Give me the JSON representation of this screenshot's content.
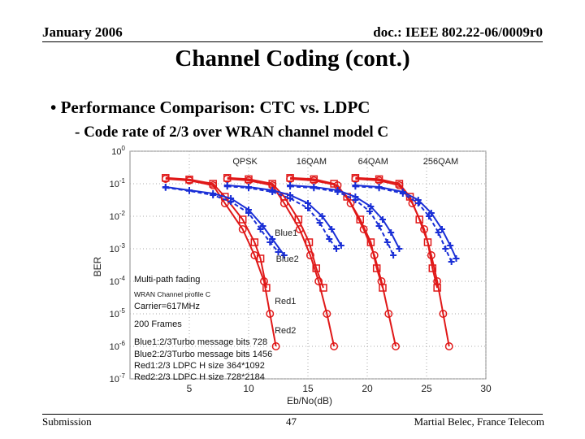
{
  "header": {
    "date": "January 2006",
    "doc": "doc.: IEEE 802.22-06/0009r0"
  },
  "title": "Channel Coding (cont.)",
  "bullets": [
    "• Performance Comparison: CTC vs. LDPC",
    "- Code rate of 2/3 over WRAN channel model C"
  ],
  "footer": {
    "left": "Submission",
    "center": "47",
    "right": "Martial Belec, France Telecom"
  },
  "colors": {
    "red": "#e01818",
    "blue": "#1a2fd6"
  },
  "chart_data": {
    "type": "line",
    "xlabel": "Eb/No(dB)",
    "ylabel": "BER",
    "xlim": [
      0,
      30
    ],
    "ylog_exponent_lim": [
      -7,
      0
    ],
    "xticks": [
      5,
      10,
      15,
      20,
      25,
      30
    ],
    "ytick_exponents": [
      0,
      -1,
      -2,
      -3,
      -4,
      -5,
      -6,
      -7
    ],
    "modulation_labels": [
      {
        "text": "QPSK",
        "x": 9.7
      },
      {
        "text": "16QAM",
        "x": 15.3
      },
      {
        "text": "64QAM",
        "x": 20.5
      },
      {
        "text": "256QAM",
        "x": 26.2
      }
    ],
    "curve_labels": [
      {
        "text": "Blue1",
        "x": 12.2,
        "logy": -2.5
      },
      {
        "text": "Blue2",
        "x": 12.3,
        "logy": -3.3
      },
      {
        "text": "Red1",
        "x": 12.2,
        "logy": -4.6
      },
      {
        "text": "Red2",
        "x": 12.2,
        "logy": -5.5
      }
    ],
    "annotations": [
      "Multi-path fading",
      "WRAN Channel profile C",
      "Carrier=617MHz",
      "200 Frames",
      "Blue1:2/3Turbo message bits 728",
      "Blue2:2/3Turbo message bits 1456",
      "Red1:2/3 LDPC H size 364*1092",
      "Red2:2/3 LDPC H size 728*2184"
    ],
    "series": [
      {
        "style": "red-square",
        "points": [
          [
            3,
            -0.82
          ],
          [
            5,
            -0.87
          ],
          [
            7,
            -1.0
          ],
          [
            8,
            -1.4
          ],
          [
            9.5,
            -2.1
          ],
          [
            10.5,
            -2.8
          ],
          [
            11,
            -3.3
          ],
          [
            11.5,
            -4.2
          ]
        ]
      },
      {
        "style": "red-circle",
        "points": [
          [
            3,
            -0.85
          ],
          [
            5,
            -0.9
          ],
          [
            7,
            -1.05
          ],
          [
            8,
            -1.6
          ],
          [
            9.5,
            -2.4
          ],
          [
            10.5,
            -3.2
          ],
          [
            11.3,
            -4.0
          ],
          [
            11.8,
            -5.0
          ],
          [
            12.3,
            -6.0
          ]
        ]
      },
      {
        "style": "red-square",
        "points": [
          [
            8.2,
            -0.82
          ],
          [
            10,
            -0.86
          ],
          [
            12,
            -1.0
          ],
          [
            13,
            -1.4
          ],
          [
            14.2,
            -2.1
          ],
          [
            15.1,
            -2.8
          ],
          [
            15.7,
            -3.6
          ],
          [
            16.3,
            -4.2
          ]
        ]
      },
      {
        "style": "red-circle",
        "points": [
          [
            8.2,
            -0.85
          ],
          [
            10,
            -0.9
          ],
          [
            12,
            -1.05
          ],
          [
            13,
            -1.6
          ],
          [
            14.3,
            -2.4
          ],
          [
            15.2,
            -3.2
          ],
          [
            15.9,
            -4.0
          ],
          [
            16.6,
            -5.0
          ],
          [
            17.2,
            -6.0
          ]
        ]
      },
      {
        "style": "red-square",
        "points": [
          [
            13.5,
            -0.82
          ],
          [
            15.5,
            -0.86
          ],
          [
            17.2,
            -1.0
          ],
          [
            18.3,
            -1.4
          ],
          [
            19.4,
            -2.1
          ],
          [
            20.3,
            -2.8
          ],
          [
            20.8,
            -3.6
          ],
          [
            21.3,
            -4.2
          ]
        ]
      },
      {
        "style": "red-circle",
        "points": [
          [
            13.5,
            -0.85
          ],
          [
            15.5,
            -0.9
          ],
          [
            17.5,
            -1.05
          ],
          [
            18.6,
            -1.6
          ],
          [
            19.7,
            -2.4
          ],
          [
            20.6,
            -3.2
          ],
          [
            21.2,
            -4.0
          ],
          [
            21.8,
            -5.0
          ],
          [
            22.4,
            -6.0
          ]
        ]
      },
      {
        "style": "red-square",
        "points": [
          [
            19,
            -0.82
          ],
          [
            21,
            -0.86
          ],
          [
            22.7,
            -1.0
          ],
          [
            23.6,
            -1.4
          ],
          [
            24.4,
            -2.1
          ],
          [
            25.1,
            -2.8
          ],
          [
            25.5,
            -3.6
          ],
          [
            25.9,
            -4.2
          ]
        ]
      },
      {
        "style": "red-circle",
        "points": [
          [
            19,
            -0.85
          ],
          [
            21,
            -0.9
          ],
          [
            22.7,
            -1.05
          ],
          [
            23.8,
            -1.6
          ],
          [
            24.8,
            -2.4
          ],
          [
            25.4,
            -3.2
          ],
          [
            25.9,
            -4.0
          ],
          [
            26.4,
            -5.0
          ],
          [
            26.9,
            -6.0
          ]
        ]
      },
      {
        "style": "blue-solid",
        "points": [
          [
            3,
            -1.1
          ],
          [
            5,
            -1.2
          ],
          [
            7,
            -1.3
          ],
          [
            8.5,
            -1.45
          ],
          [
            10,
            -1.8
          ],
          [
            11.2,
            -2.3
          ],
          [
            12,
            -2.7
          ],
          [
            13,
            -3.2
          ]
        ]
      },
      {
        "style": "blue-dash",
        "points": [
          [
            3,
            -1.12
          ],
          [
            5,
            -1.22
          ],
          [
            7,
            -1.35
          ],
          [
            8.5,
            -1.55
          ],
          [
            10,
            -1.9
          ],
          [
            11,
            -2.4
          ],
          [
            11.8,
            -2.8
          ],
          [
            12.5,
            -3.1
          ]
        ]
      },
      {
        "style": "blue-solid",
        "points": [
          [
            8.2,
            -1.05
          ],
          [
            10,
            -1.1
          ],
          [
            12,
            -1.2
          ],
          [
            13.5,
            -1.35
          ],
          [
            15,
            -1.6
          ],
          [
            16.2,
            -2.0
          ],
          [
            17,
            -2.4
          ],
          [
            17.8,
            -2.9
          ]
        ]
      },
      {
        "style": "blue-dash",
        "points": [
          [
            8.2,
            -1.08
          ],
          [
            10,
            -1.13
          ],
          [
            12,
            -1.25
          ],
          [
            13.5,
            -1.45
          ],
          [
            15,
            -1.75
          ],
          [
            16,
            -2.2
          ],
          [
            16.8,
            -2.7
          ],
          [
            17.4,
            -3.0
          ]
        ]
      },
      {
        "style": "blue-solid",
        "points": [
          [
            13.5,
            -1.05
          ],
          [
            15.5,
            -1.1
          ],
          [
            17.5,
            -1.2
          ],
          [
            19,
            -1.4
          ],
          [
            20.3,
            -1.7
          ],
          [
            21.3,
            -2.1
          ],
          [
            22,
            -2.5
          ],
          [
            22.7,
            -3.0
          ]
        ]
      },
      {
        "style": "blue-dash",
        "points": [
          [
            13.5,
            -1.08
          ],
          [
            15.5,
            -1.13
          ],
          [
            17.5,
            -1.25
          ],
          [
            19,
            -1.5
          ],
          [
            20.2,
            -1.85
          ],
          [
            21,
            -2.3
          ],
          [
            21.7,
            -2.8
          ],
          [
            22.2,
            -3.2
          ]
        ]
      },
      {
        "style": "blue-solid",
        "points": [
          [
            19,
            -1.05
          ],
          [
            21,
            -1.1
          ],
          [
            23,
            -1.25
          ],
          [
            24.3,
            -1.5
          ],
          [
            25.4,
            -1.9
          ],
          [
            26.3,
            -2.4
          ],
          [
            27,
            -2.9
          ],
          [
            27.5,
            -3.3
          ]
        ]
      },
      {
        "style": "blue-dash",
        "points": [
          [
            19,
            -1.08
          ],
          [
            21,
            -1.13
          ],
          [
            23,
            -1.3
          ],
          [
            24.3,
            -1.6
          ],
          [
            25.2,
            -2.0
          ],
          [
            26,
            -2.5
          ],
          [
            26.6,
            -3.0
          ],
          [
            27.1,
            -3.4
          ]
        ]
      }
    ]
  }
}
